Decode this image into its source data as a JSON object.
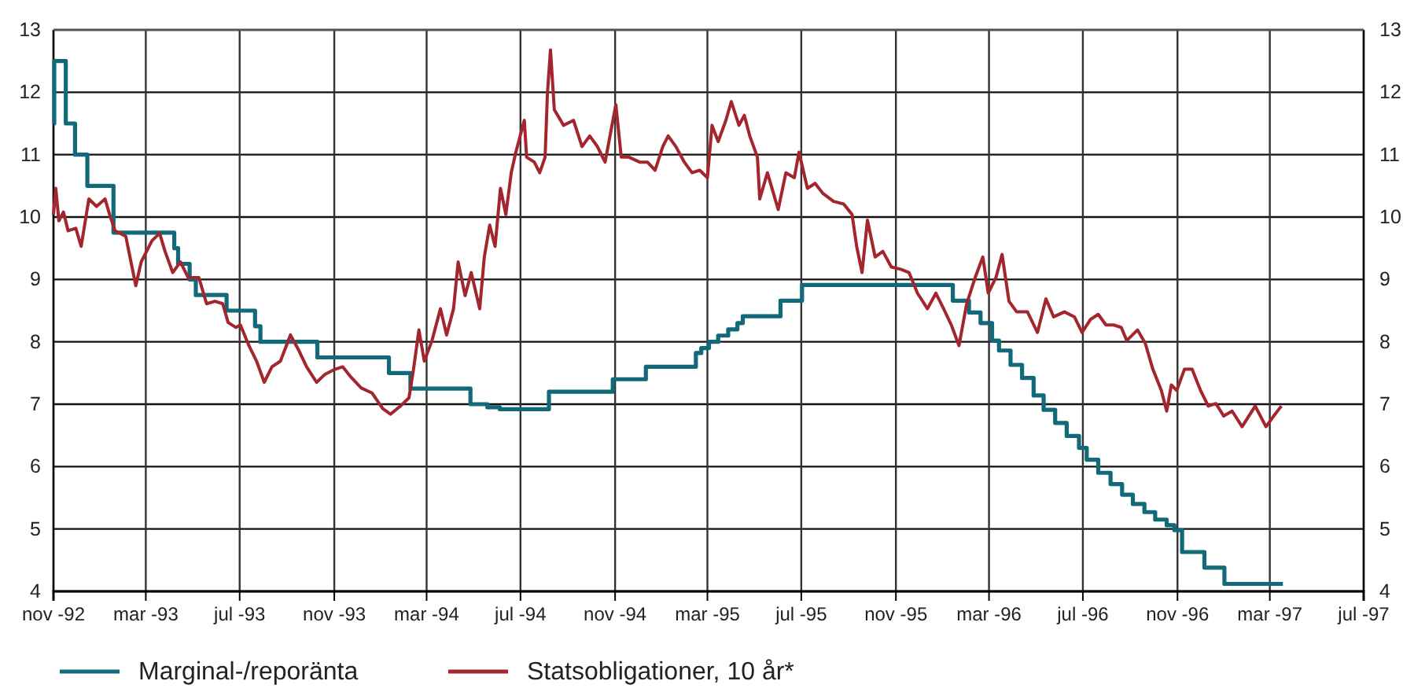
{
  "chart_data": {
    "type": "line",
    "xlim": [
      "1992-11-01",
      "1997-07-01"
    ],
    "xticks": [
      {
        "value": "1992-11-01",
        "label": "nov -92"
      },
      {
        "value": "1993-03-01",
        "label": "mar -93"
      },
      {
        "value": "1993-07-01",
        "label": "jul -93"
      },
      {
        "value": "1993-11-01",
        "label": "nov -93"
      },
      {
        "value": "1994-03-01",
        "label": "mar -94"
      },
      {
        "value": "1994-07-01",
        "label": "jul -94"
      },
      {
        "value": "1994-11-01",
        "label": "nov -94"
      },
      {
        "value": "1995-03-01",
        "label": "mar -95"
      },
      {
        "value": "1995-07-01",
        "label": "jul -95"
      },
      {
        "value": "1995-11-01",
        "label": "nov -95"
      },
      {
        "value": "1996-03-01",
        "label": "mar -96"
      },
      {
        "value": "1996-07-01",
        "label": "jul -96"
      },
      {
        "value": "1996-11-01",
        "label": "nov -96"
      },
      {
        "value": "1997-03-01",
        "label": "mar -97"
      },
      {
        "value": "1997-07-01",
        "label": "jul -97"
      }
    ],
    "ylim": [
      4,
      13
    ],
    "yticks": [
      4,
      5,
      6,
      7,
      8,
      9,
      10,
      11,
      12,
      13
    ],
    "y2lim": [
      4,
      13
    ],
    "y2ticks": [
      4,
      5,
      6,
      7,
      8,
      9,
      10,
      11,
      12,
      13
    ],
    "grid": true,
    "legend": "bottom",
    "line_style": "solid",
    "series": [
      {
        "name": "Marginal-/reporänta",
        "type": "step",
        "color": "#11697a",
        "x": [
          "1992-11-01",
          "1992-11-02",
          "1992-11-17",
          "1992-11-29",
          "1992-12-15",
          "1993-01-18",
          "1993-04-07",
          "1993-04-12",
          "1993-04-27",
          "1993-05-05",
          "1993-06-14",
          "1993-07-21",
          "1993-07-28",
          "1993-10-10",
          "1994-01-11",
          "1994-02-08",
          "1994-04-27",
          "1994-05-19",
          "1994-06-04",
          "1994-08-07",
          "1994-10-29",
          "1994-12-11",
          "1995-02-14",
          "1995-02-21",
          "1995-03-03",
          "1995-03-15",
          "1995-03-28",
          "1995-04-09",
          "1995-04-16",
          "1995-06-04",
          "1995-07-02",
          "1996-01-14",
          "1996-02-04",
          "1996-02-19",
          "1996-03-05",
          "1996-03-14",
          "1996-03-29",
          "1996-04-13",
          "1996-04-28",
          "1996-05-11",
          "1996-05-26",
          "1996-06-10",
          "1996-06-26",
          "1996-07-06",
          "1996-07-21",
          "1996-08-06",
          "1996-08-21",
          "1996-09-04",
          "1996-09-19",
          "1996-10-03",
          "1996-10-18",
          "1996-10-28",
          "1996-11-07",
          "1996-12-06",
          "1997-01-01",
          "1997-03-18"
        ],
        "values": [
          11.5,
          12.5,
          11.5,
          11.0,
          10.5,
          9.75,
          9.5,
          9.25,
          9.0,
          8.75,
          8.5,
          8.25,
          8.0,
          7.75,
          7.5,
          7.25,
          7.0,
          6.95,
          6.92,
          7.2,
          7.4,
          7.6,
          7.82,
          7.9,
          8.0,
          8.1,
          8.2,
          8.3,
          8.41,
          8.66,
          8.91,
          8.66,
          8.47,
          8.3,
          8.02,
          7.86,
          7.63,
          7.42,
          7.14,
          6.91,
          6.7,
          6.49,
          6.3,
          6.11,
          5.9,
          5.72,
          5.55,
          5.4,
          5.27,
          5.15,
          5.06,
          4.98,
          4.63,
          4.38,
          4.12,
          4.12
        ]
      },
      {
        "name": "Statsobligationer, 10 år*",
        "type": "line",
        "color": "#a3262e",
        "x": [
          "1992-11-01",
          "1992-11-04",
          "1992-11-08",
          "1992-11-14",
          "1992-11-20",
          "1992-11-30",
          "1992-12-07",
          "1992-12-17",
          "1992-12-27",
          "1993-01-07",
          "1993-01-13",
          "1993-01-20",
          "1993-02-03",
          "1993-02-16",
          "1993-02-23",
          "1993-03-09",
          "1993-03-19",
          "1993-03-26",
          "1993-04-05",
          "1993-04-15",
          "1993-04-25",
          "1993-05-09",
          "1993-05-19",
          "1993-05-30",
          "1993-06-09",
          "1993-06-16",
          "1993-06-26",
          "1993-07-02",
          "1993-07-13",
          "1993-07-23",
          "1993-08-02",
          "1993-08-12",
          "1993-08-23",
          "1993-09-05",
          "1993-09-16",
          "1993-09-26",
          "1993-10-09",
          "1993-10-20",
          "1993-11-02",
          "1993-11-12",
          "1993-11-23",
          "1993-12-06",
          "1993-12-20",
          "1994-01-03",
          "1994-01-13",
          "1994-01-26",
          "1994-02-06",
          "1994-02-12",
          "1994-02-19",
          "1994-02-26",
          "1994-03-08",
          "1994-03-19",
          "1994-03-27",
          "1994-04-05",
          "1994-04-11",
          "1994-04-20",
          "1994-04-28",
          "1994-05-09",
          "1994-05-15",
          "1994-05-22",
          "1994-05-29",
          "1994-06-05",
          "1994-06-12",
          "1994-06-19",
          "1994-06-25",
          "1994-07-06",
          "1994-07-09",
          "1994-07-19",
          "1994-07-26",
          "1994-08-02",
          "1994-08-05",
          "1994-08-09",
          "1994-08-14",
          "1994-08-26",
          "1994-09-08",
          "1994-09-19",
          "1994-09-29",
          "1994-10-09",
          "1994-10-19",
          "1994-11-02",
          "1994-11-09",
          "1994-11-19",
          "1994-12-03",
          "1994-12-13",
          "1994-12-23",
          "1995-01-02",
          "1995-01-09",
          "1995-01-19",
          "1995-01-30",
          "1995-02-09",
          "1995-02-19",
          "1995-03-01",
          "1995-03-07",
          "1995-03-15",
          "1995-03-25",
          "1995-04-01",
          "1995-04-11",
          "1995-04-18",
          "1995-04-25",
          "1995-05-05",
          "1995-05-08",
          "1995-05-18",
          "1995-06-01",
          "1995-06-11",
          "1995-06-22",
          "1995-06-28",
          "1995-07-09",
          "1995-07-19",
          "1995-07-29",
          "1995-08-12",
          "1995-08-25",
          "1995-09-05",
          "1995-09-11",
          "1995-09-18",
          "1995-09-25",
          "1995-10-05",
          "1995-10-15",
          "1995-10-26",
          "1995-11-08",
          "1995-11-18",
          "1995-11-29",
          "1995-12-12",
          "1995-12-23",
          "1996-01-02",
          "1996-01-12",
          "1996-01-22",
          "1996-02-01",
          "1996-02-12",
          "1996-02-22",
          "1996-02-29",
          "1996-03-10",
          "1996-03-18",
          "1996-03-27",
          "1996-04-06",
          "1996-04-20",
          "1996-05-03",
          "1996-05-14",
          "1996-05-24",
          "1996-06-07",
          "1996-06-20",
          "1996-06-30",
          "1996-07-11",
          "1996-07-21",
          "1996-07-31",
          "1996-08-10",
          "1996-08-20",
          "1996-08-27",
          "1996-09-10",
          "1996-09-20",
          "1996-09-30",
          "1996-10-11",
          "1996-10-18",
          "1996-10-24",
          "1996-10-31",
          "1996-11-10",
          "1996-11-20",
          "1996-12-01",
          "1996-12-11",
          "1996-12-21",
          "1996-12-31",
          "1997-01-11",
          "1997-01-24",
          "1997-02-10",
          "1997-02-24",
          "1997-03-06",
          "1997-03-16"
        ],
        "values": [
          10.04,
          10.46,
          9.94,
          10.08,
          9.78,
          9.82,
          9.53,
          10.29,
          10.17,
          10.29,
          10.04,
          9.78,
          9.69,
          8.9,
          9.28,
          9.62,
          9.74,
          9.45,
          9.11,
          9.28,
          9.03,
          9.03,
          8.61,
          8.65,
          8.61,
          8.31,
          8.23,
          8.27,
          7.94,
          7.69,
          7.35,
          7.6,
          7.69,
          8.11,
          7.86,
          7.6,
          7.35,
          7.48,
          7.56,
          7.6,
          7.43,
          7.26,
          7.18,
          6.93,
          6.84,
          6.97,
          7.1,
          7.56,
          8.19,
          7.69,
          8.02,
          8.53,
          8.11,
          8.53,
          9.28,
          8.74,
          9.11,
          8.53,
          9.36,
          9.87,
          9.53,
          10.46,
          10.04,
          10.71,
          11.04,
          11.55,
          10.96,
          10.88,
          10.71,
          10.96,
          11.97,
          12.68,
          11.72,
          11.47,
          11.55,
          11.13,
          11.3,
          11.13,
          10.88,
          11.8,
          10.96,
          10.96,
          10.88,
          10.88,
          10.75,
          11.13,
          11.3,
          11.13,
          10.88,
          10.71,
          10.75,
          10.63,
          11.47,
          11.21,
          11.55,
          11.85,
          11.47,
          11.63,
          11.3,
          10.96,
          10.29,
          10.71,
          10.12,
          10.71,
          10.63,
          11.04,
          10.46,
          10.54,
          10.38,
          10.25,
          10.21,
          10.04,
          9.53,
          9.11,
          9.95,
          9.36,
          9.45,
          9.2,
          9.16,
          9.11,
          8.78,
          8.53,
          8.78,
          8.53,
          8.27,
          7.94,
          8.61,
          9.03,
          9.36,
          8.78,
          9.03,
          9.4,
          8.65,
          8.48,
          8.48,
          8.15,
          8.69,
          8.4,
          8.48,
          8.4,
          8.15,
          8.36,
          8.44,
          8.27,
          8.27,
          8.23,
          8.02,
          8.19,
          7.98,
          7.56,
          7.22,
          6.89,
          7.31,
          7.22,
          7.56,
          7.56,
          7.22,
          6.97,
          7.01,
          6.81,
          6.89,
          6.64,
          6.97,
          6.64,
          6.81,
          6.97
        ]
      }
    ]
  }
}
